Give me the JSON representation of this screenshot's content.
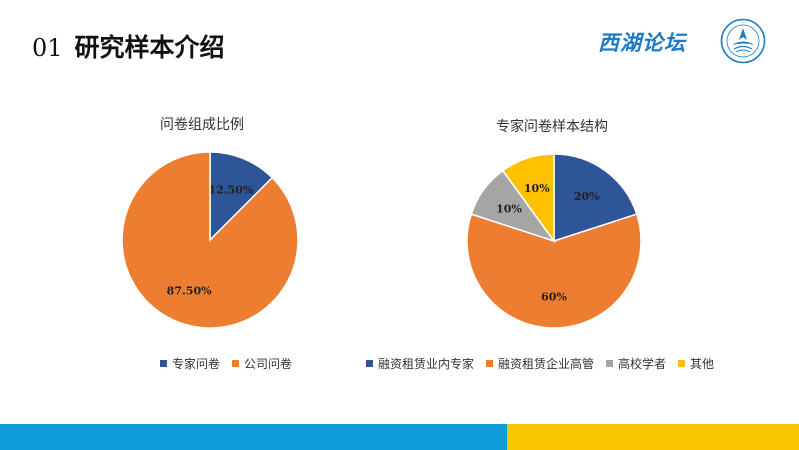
{
  "header": {
    "number": "01",
    "title": "研究样本介绍",
    "logo_text": "西湖论坛",
    "logo_color": "#1d7bc6"
  },
  "colors": {
    "blue": "#2e5597",
    "orange": "#ed7d31",
    "gray": "#a5a5a5",
    "yellow": "#ffc000",
    "bottom_bar_blue": "#0e9bd8",
    "bottom_bar_yellow": "#f8c600"
  },
  "chart_data": [
    {
      "type": "pie",
      "title": "问卷组成比例",
      "categories": [
        "专家问卷",
        "公司问卷"
      ],
      "values": [
        12.5,
        87.5
      ],
      "data_labels": [
        "12.50%",
        "87.50%"
      ],
      "colors": [
        "#2e5597",
        "#ed7d31"
      ],
      "legend_position": "bottom"
    },
    {
      "type": "pie",
      "title": "专家问卷样本结构",
      "categories": [
        "融资租赁业内专家",
        "融资租赁企业高管",
        "高校学者",
        "其他"
      ],
      "values": [
        20,
        60,
        10,
        10
      ],
      "data_labels": [
        "20%",
        "60%",
        "10%",
        "10%"
      ],
      "colors": [
        "#2e5597",
        "#ed7d31",
        "#a5a5a5",
        "#ffc000"
      ],
      "legend_position": "bottom"
    }
  ]
}
